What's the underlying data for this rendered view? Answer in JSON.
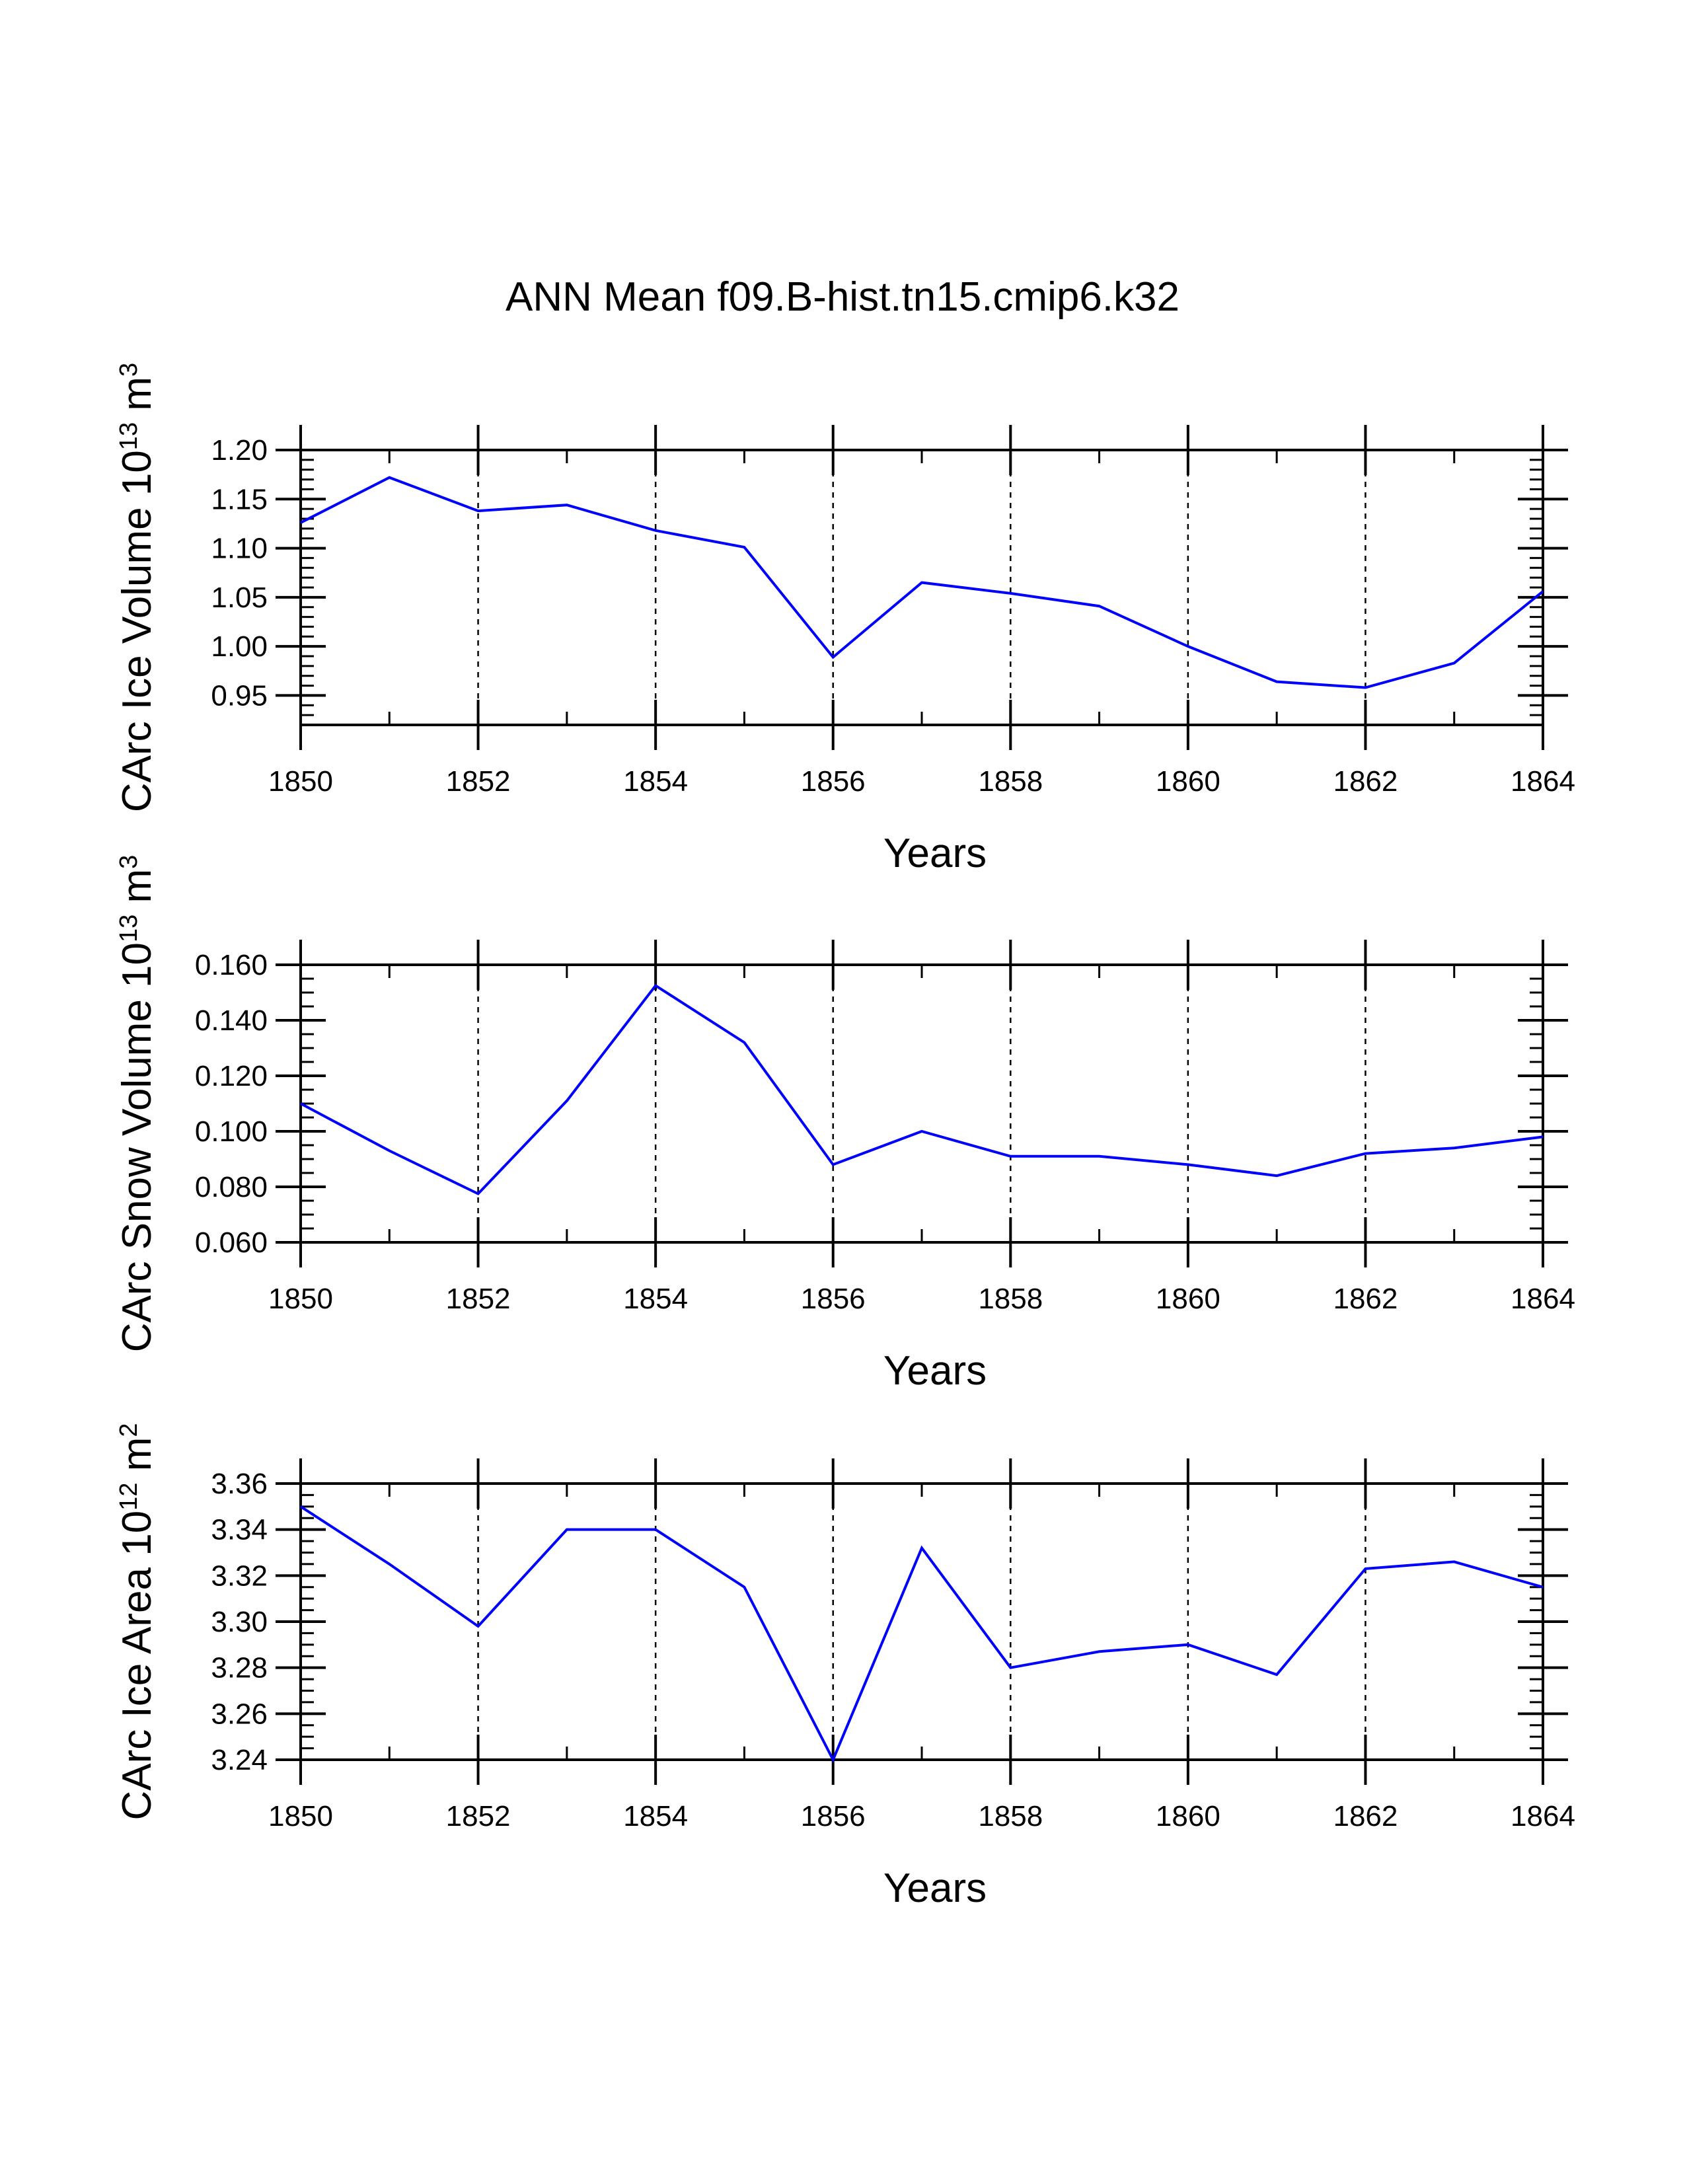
{
  "title": "ANN Mean f09.B-hist.tn15.cmip6.k32",
  "colors": {
    "line": "#0000ff",
    "axes": "#000000",
    "grid": "#000000"
  },
  "chart_data": [
    {
      "type": "line",
      "title": "ANN Mean f09.B-hist.tn15.cmip6.k32",
      "xlabel": "Years",
      "ylabel": {
        "text": "CArc Ice Volume 10",
        "exp": "13",
        "unit": " m",
        "unit_exp": "3"
      },
      "xlim": [
        1850,
        1864
      ],
      "ylim": [
        0.92,
        1.2
      ],
      "x": [
        1850,
        1851,
        1852,
        1853,
        1854,
        1855,
        1856,
        1857,
        1858,
        1859,
        1860,
        1861,
        1862,
        1863,
        1864
      ],
      "values": [
        1.126,
        1.172,
        1.138,
        1.144,
        1.118,
        1.101,
        0.989,
        1.065,
        1.054,
        1.041,
        1.0,
        0.964,
        0.958,
        0.983,
        1.056
      ],
      "xticks": [
        "1850",
        "1852",
        "1854",
        "1856",
        "1858",
        "1860",
        "1862",
        "1864"
      ],
      "yticks": [
        "0.95",
        "1.00",
        "1.05",
        "1.10",
        "1.15",
        "1.20"
      ],
      "ytick_values": [
        0.95,
        1.0,
        1.05,
        1.1,
        1.15,
        1.2
      ],
      "grid": "dashed vertical at labeled years"
    },
    {
      "type": "line",
      "xlabel": "Years",
      "ylabel": {
        "text": "CArc Snow Volume 10",
        "exp": "13",
        "unit": " m",
        "unit_exp": "3"
      },
      "xlim": [
        1850,
        1864
      ],
      "ylim": [
        0.06,
        0.16
      ],
      "x": [
        1850,
        1851,
        1852,
        1853,
        1854,
        1855,
        1856,
        1857,
        1858,
        1859,
        1860,
        1861,
        1862,
        1863,
        1864
      ],
      "values": [
        0.11,
        0.093,
        0.0775,
        0.111,
        0.1525,
        0.132,
        0.088,
        0.1,
        0.091,
        0.091,
        0.088,
        0.084,
        0.092,
        0.094,
        0.098
      ],
      "xticks": [
        "1850",
        "1852",
        "1854",
        "1856",
        "1858",
        "1860",
        "1862",
        "1864"
      ],
      "yticks": [
        "0.060",
        "0.080",
        "0.100",
        "0.120",
        "0.140",
        "0.160"
      ],
      "ytick_values": [
        0.06,
        0.08,
        0.1,
        0.12,
        0.14,
        0.16
      ],
      "grid": "dashed vertical at labeled years"
    },
    {
      "type": "line",
      "xlabel": "Years",
      "ylabel": {
        "text": "CArc Ice Area 10",
        "exp": "12",
        "unit": " m",
        "unit_exp": "2"
      },
      "xlim": [
        1850,
        1864
      ],
      "ylim": [
        3.24,
        3.36
      ],
      "x": [
        1850,
        1851,
        1852,
        1853,
        1854,
        1855,
        1856,
        1857,
        1858,
        1859,
        1860,
        1861,
        1862,
        1863,
        1864
      ],
      "values": [
        3.35,
        3.325,
        3.298,
        3.34,
        3.34,
        3.315,
        3.24,
        3.332,
        3.28,
        3.287,
        3.29,
        3.277,
        3.323,
        3.326,
        3.315
      ],
      "xticks": [
        "1850",
        "1852",
        "1854",
        "1856",
        "1858",
        "1860",
        "1862",
        "1864"
      ],
      "yticks": [
        "3.24",
        "3.26",
        "3.28",
        "3.30",
        "3.32",
        "3.34",
        "3.36"
      ],
      "ytick_values": [
        3.24,
        3.26,
        3.28,
        3.3,
        3.32,
        3.34,
        3.36
      ],
      "grid": "dashed vertical at labeled years"
    }
  ]
}
